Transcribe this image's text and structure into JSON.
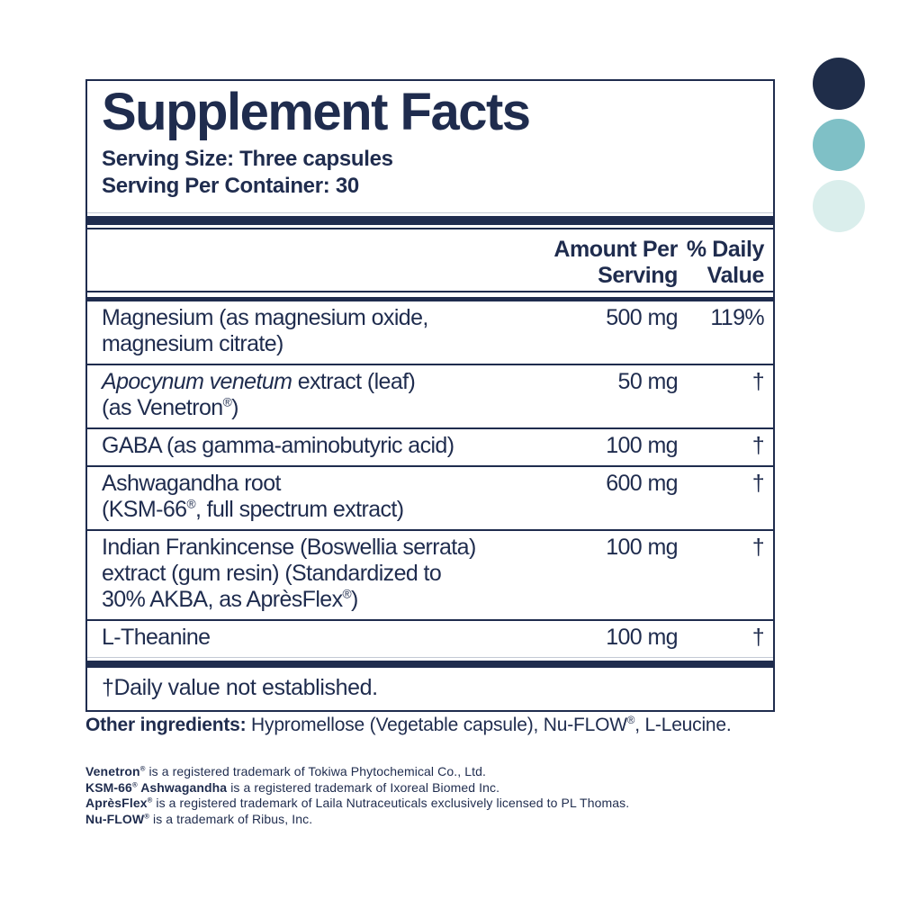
{
  "panel": {
    "title": "Supplement Facts",
    "serving_size": "Serving Size: Three capsules",
    "serving_per_container": "Serving Per Container: 30",
    "columns": {
      "amount": "Amount Per\nServing",
      "daily_value": "% Daily\nValue"
    },
    "rows": [
      {
        "name": [
          {
            "t": "Magnesium (as magnesium oxide,\nmagnesium citrate)"
          }
        ],
        "amount": "500 mg",
        "daily_value": "119%"
      },
      {
        "name": [
          {
            "t": "Apocynum venetum",
            "italic": true
          },
          {
            "t": " extract (leaf)\n(as Venetron"
          },
          {
            "t": "®",
            "sup": true
          },
          {
            "t": ")"
          }
        ],
        "amount": "50 mg",
        "daily_value": "†"
      },
      {
        "name": [
          {
            "t": "GABA (as gamma-aminobutyric acid)"
          }
        ],
        "amount": "100 mg",
        "daily_value": "†"
      },
      {
        "name": [
          {
            "t": "Ashwagandha root\n(KSM-66"
          },
          {
            "t": "®",
            "sup": true
          },
          {
            "t": ", full spectrum extract)"
          }
        ],
        "amount": "600 mg",
        "daily_value": "†"
      },
      {
        "name": [
          {
            "t": "Indian Frankincense (Boswellia serrata)\nextract (gum resin) (Standardized to\n30% AKBA, as AprèsFlex"
          },
          {
            "t": "®",
            "sup": true
          },
          {
            "t": ")"
          }
        ],
        "amount": "100 mg",
        "daily_value": "†"
      },
      {
        "name": [
          {
            "t": "L-Theanine"
          }
        ],
        "amount": "100 mg",
        "daily_value": "†"
      }
    ],
    "footnote": "†Daily value not established."
  },
  "other_ingredients": [
    {
      "t": "Other ingredients:",
      "bold": true
    },
    {
      "t": " Hypromellose (Vegetable capsule), Nu-FLOW"
    },
    {
      "t": "®",
      "sup": true
    },
    {
      "t": ", L-Leucine."
    }
  ],
  "trademark_lines": [
    [
      {
        "t": "Venetron",
        "bold": true
      },
      {
        "t": "®",
        "sup": true,
        "bold": true
      },
      {
        "t": " is a registered trademark of Tokiwa Phytochemical Co., Ltd."
      }
    ],
    [
      {
        "t": "KSM-66",
        "bold": true
      },
      {
        "t": "®",
        "sup": true,
        "bold": true
      },
      {
        "t": " Ashwagandha",
        "bold": true
      },
      {
        "t": " is a registered trademark of Ixoreal Biomed Inc."
      }
    ],
    [
      {
        "t": "AprèsFlex",
        "bold": true
      },
      {
        "t": "®",
        "sup": true,
        "bold": true
      },
      {
        "t": " is a registered trademark of Laila Nutraceuticals exclusively licensed to PL Thomas."
      }
    ],
    [
      {
        "t": "Nu-FLOW",
        "bold": true
      },
      {
        "t": "®",
        "sup": true,
        "bold": true
      },
      {
        "t": " is a trademark of Ribus, Inc."
      }
    ]
  ],
  "palette": {
    "colors": [
      "#1f2d49",
      "#7fc0c6",
      "#daeeec"
    ],
    "names": [
      "brand-navy",
      "brand-teal",
      "brand-light-teal"
    ]
  },
  "text_color": "#1f2c4e"
}
